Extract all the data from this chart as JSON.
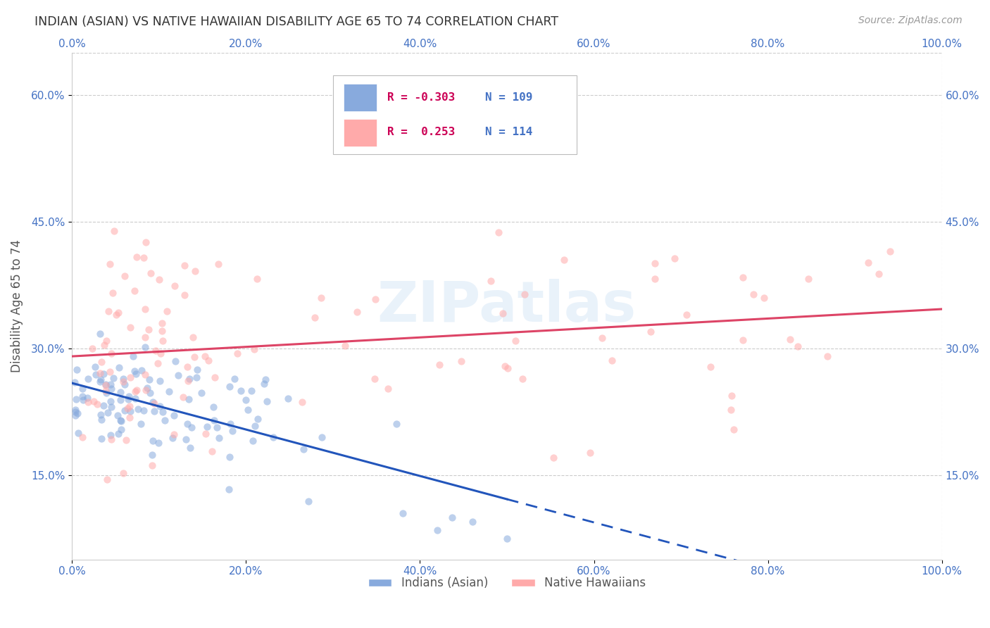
{
  "title": "INDIAN (ASIAN) VS NATIVE HAWAIIAN DISABILITY AGE 65 TO 74 CORRELATION CHART",
  "source": "Source: ZipAtlas.com",
  "ylabel": "Disability Age 65 to 74",
  "xlabel": "",
  "xlim": [
    0.0,
    1.0
  ],
  "ylim": [
    0.05,
    0.65
  ],
  "xticks": [
    0.0,
    0.2,
    0.4,
    0.6,
    0.8,
    1.0
  ],
  "xtick_labels": [
    "0.0%",
    "20.0%",
    "40.0%",
    "60.0%",
    "80.0%",
    "100.0%"
  ],
  "yticks": [
    0.15,
    0.3,
    0.45,
    0.6
  ],
  "ytick_labels": [
    "15.0%",
    "30.0%",
    "45.0%",
    "60.0%"
  ],
  "grid_color": "#cccccc",
  "background_color": "#ffffff",
  "title_color": "#333333",
  "axis_label_color": "#555555",
  "tick_label_color": "#4472c4",
  "series1_color": "#88aadd",
  "series2_color": "#ffaaaa",
  "series1_label": "Indians (Asian)",
  "series2_label": "Native Hawaiians",
  "series1_r": -0.303,
  "series2_r": 0.253,
  "series1_n": 109,
  "series2_n": 114,
  "trend_line1_color": "#2255bb",
  "trend_line2_color": "#dd4466",
  "trend_line1_solid_end": 0.5,
  "scatter_alpha": 0.55,
  "scatter_size": 55,
  "watermark_text": "ZIPatlas",
  "legend_box_color": "#ffffff",
  "legend_border_color": "#aaaaaa",
  "legend_text_color": "#4472c4",
  "legend_r_color": "#cc0055",
  "legend_n_color": "#4472c4",
  "leg_r1_text": "R = -0.303",
  "leg_n1_text": "N = 109",
  "leg_r2_text": "R =  0.253",
  "leg_n2_text": "N = 114"
}
